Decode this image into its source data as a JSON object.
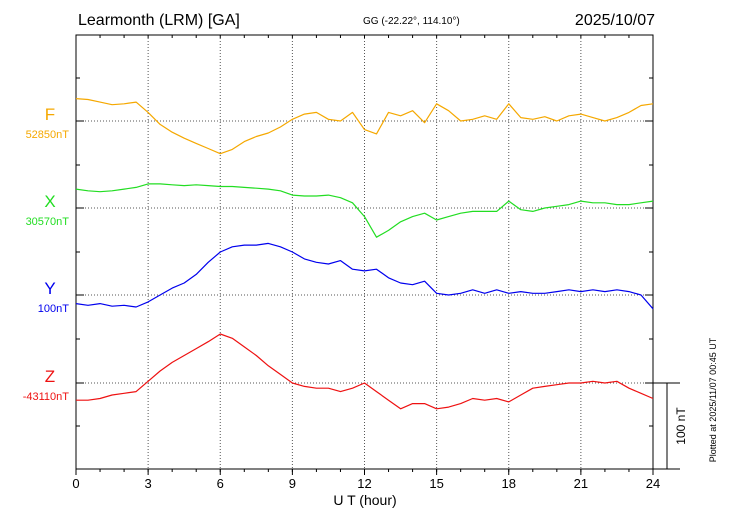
{
  "header": {
    "station": "Learmonth (LRM)  [GA]",
    "coords": "GG (-22.22°, 114.10°)",
    "date": "2025/10/07"
  },
  "footer": {
    "plotted": "Plotted at 2025/11/07 00:45 UT"
  },
  "chart_data": {
    "type": "line",
    "xlabel": "U T (hour)",
    "xlim": [
      0,
      24
    ],
    "xticks": [
      "0",
      "3",
      "6",
      "9",
      "12",
      "15",
      "18",
      "21",
      "24"
    ],
    "grid": true,
    "scale_bar": {
      "label": "100 nT",
      "value_nT": 100
    },
    "series": [
      {
        "name": "F",
        "baseline": "52850nT",
        "baseline_value": 52850,
        "color": "#f5a800",
        "x": [
          0,
          0.5,
          1,
          1.5,
          2,
          2.5,
          3,
          3.5,
          4,
          4.5,
          5,
          5.5,
          6,
          6.5,
          7,
          7.5,
          8,
          8.5,
          9,
          9.5,
          10,
          10.5,
          11,
          11.5,
          12,
          12.5,
          13,
          13.5,
          14,
          14.5,
          15,
          15.5,
          16,
          16.5,
          17,
          17.5,
          18,
          18.5,
          19,
          19.5,
          20,
          20.5,
          21,
          21.5,
          22,
          22.5,
          23,
          23.5,
          24
        ],
        "y": [
          26,
          25,
          22,
          19,
          20,
          22,
          10,
          -4,
          -13,
          -20,
          -26,
          -32,
          -38,
          -33,
          -24,
          -18,
          -14,
          -7,
          2,
          8,
          10,
          2,
          0,
          10,
          -10,
          -15,
          10,
          6,
          12,
          -2,
          20,
          12,
          0,
          2,
          6,
          2,
          20,
          4,
          2,
          5,
          0,
          6,
          8,
          4,
          0,
          4,
          10,
          18,
          20
        ]
      },
      {
        "name": "X",
        "baseline": "30570nT",
        "baseline_value": 30570,
        "color": "#22dd22",
        "x": [
          0,
          0.5,
          1,
          1.5,
          2,
          2.5,
          3,
          3.5,
          4,
          4.5,
          5,
          5.5,
          6,
          6.5,
          7,
          7.5,
          8,
          8.5,
          9,
          9.5,
          10,
          10.5,
          11,
          11.5,
          12,
          12.5,
          13,
          13.5,
          14,
          14.5,
          15,
          15.5,
          16,
          16.5,
          17,
          17.5,
          18,
          18.5,
          19,
          19.5,
          20,
          20.5,
          21,
          21.5,
          22,
          22.5,
          23,
          23.5,
          24
        ],
        "y": [
          22,
          20,
          19,
          20,
          22,
          24,
          28,
          28,
          27,
          26,
          27,
          26,
          25,
          25,
          24,
          23,
          22,
          20,
          15,
          14,
          14,
          15,
          12,
          6,
          -10,
          -34,
          -26,
          -16,
          -10,
          -6,
          -14,
          -10,
          -6,
          -4,
          -4,
          -4,
          8,
          -2,
          -4,
          0,
          2,
          4,
          8,
          6,
          6,
          4,
          4,
          6,
          8
        ]
      },
      {
        "name": "Y",
        "baseline": "100nT",
        "baseline_value": 100,
        "color": "#0000ee",
        "x": [
          0,
          0.5,
          1,
          1.5,
          2,
          2.5,
          3,
          3.5,
          4,
          4.5,
          5,
          5.5,
          6,
          6.5,
          7,
          7.5,
          8,
          8.5,
          9,
          9.5,
          10,
          10.5,
          11,
          11.5,
          12,
          12.5,
          13,
          13.5,
          14,
          14.5,
          15,
          15.5,
          16,
          16.5,
          17,
          17.5,
          18,
          18.5,
          19,
          19.5,
          20,
          20.5,
          21,
          21.5,
          22,
          22.5,
          23,
          23.5,
          24
        ],
        "y": [
          -10,
          -12,
          -10,
          -13,
          -12,
          -14,
          -8,
          0,
          8,
          14,
          24,
          38,
          50,
          56,
          58,
          58,
          60,
          56,
          50,
          42,
          38,
          36,
          40,
          30,
          28,
          30,
          20,
          14,
          12,
          16,
          2,
          0,
          2,
          6,
          2,
          6,
          2,
          4,
          2,
          2,
          4,
          6,
          4,
          6,
          4,
          6,
          4,
          0,
          -16
        ]
      },
      {
        "name": "Z",
        "baseline": "-43110nT",
        "baseline_value": -43110,
        "color": "#ee1111",
        "x": [
          0,
          0.5,
          1,
          1.5,
          2,
          2.5,
          3,
          3.5,
          4,
          4.5,
          5,
          5.5,
          6,
          6.5,
          7,
          7.5,
          8,
          8.5,
          9,
          9.5,
          10,
          10.5,
          11,
          11.5,
          12,
          12.5,
          13,
          13.5,
          14,
          14.5,
          15,
          15.5,
          16,
          16.5,
          17,
          17.5,
          18,
          18.5,
          19,
          19.5,
          20,
          20.5,
          21,
          21.5,
          22,
          22.5,
          23,
          23.5,
          24
        ],
        "y": [
          -20,
          -20,
          -18,
          -14,
          -12,
          -10,
          2,
          14,
          24,
          32,
          40,
          48,
          57,
          52,
          42,
          32,
          20,
          10,
          0,
          -4,
          -6,
          -6,
          -10,
          -6,
          0,
          -10,
          -20,
          -30,
          -24,
          -24,
          -30,
          -28,
          -24,
          -18,
          -20,
          -18,
          -22,
          -14,
          -6,
          -4,
          -2,
          0,
          0,
          2,
          0,
          2,
          -6,
          -12,
          -18
        ]
      }
    ]
  }
}
